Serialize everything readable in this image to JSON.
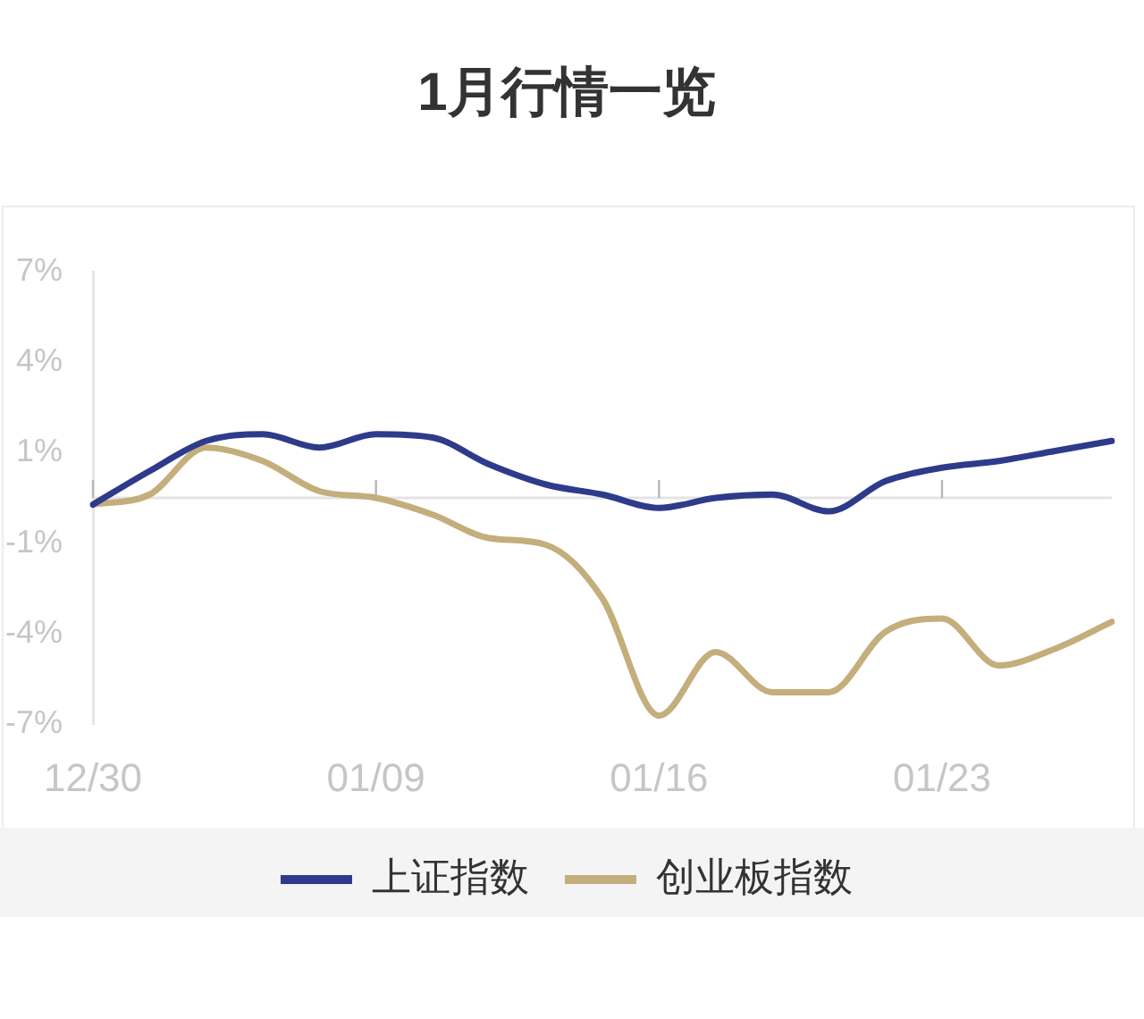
{
  "chart_data": {
    "type": "line",
    "title": "1月行情一览",
    "categories": [
      "12/30",
      null,
      null,
      null,
      null,
      "01/09",
      null,
      null,
      null,
      null,
      "01/16",
      null,
      null,
      null,
      null,
      "01/23",
      null,
      null,
      null
    ],
    "series": [
      {
        "name": "上证指数",
        "color": "#2e3b8b",
        "values": [
          -0.2,
          0.8,
          1.7,
          1.9,
          1.5,
          1.9,
          1.8,
          1.0,
          0.4,
          0.1,
          -0.3,
          0.0,
          0.1,
          -0.4,
          0.5,
          0.9,
          1.1,
          1.4,
          1.7
        ]
      },
      {
        "name": "创业板指数",
        "color": "#c3ae7c",
        "values": [
          -0.2,
          0.1,
          1.5,
          1.1,
          0.2,
          0.0,
          -0.5,
          -1.2,
          -1.4,
          -3.0,
          -6.5,
          -4.6,
          -5.8,
          -5.8,
          -4.0,
          -3.6,
          -5.0,
          -4.5,
          -3.7
        ]
      }
    ],
    "ylim": [
      -6.75,
      6.75
    ],
    "yticks": [
      {
        "value": 6.75,
        "label": "7%"
      },
      {
        "value": 4.05,
        "label": "4%"
      },
      {
        "value": 1.35,
        "label": "1%"
      },
      {
        "value": -1.35,
        "label": "-1%"
      },
      {
        "value": -4.05,
        "label": "-4%"
      },
      {
        "value": -6.75,
        "label": "-7%"
      }
    ],
    "grid": false,
    "legend": "bottom",
    "marker": "none",
    "line_style": "solid"
  }
}
